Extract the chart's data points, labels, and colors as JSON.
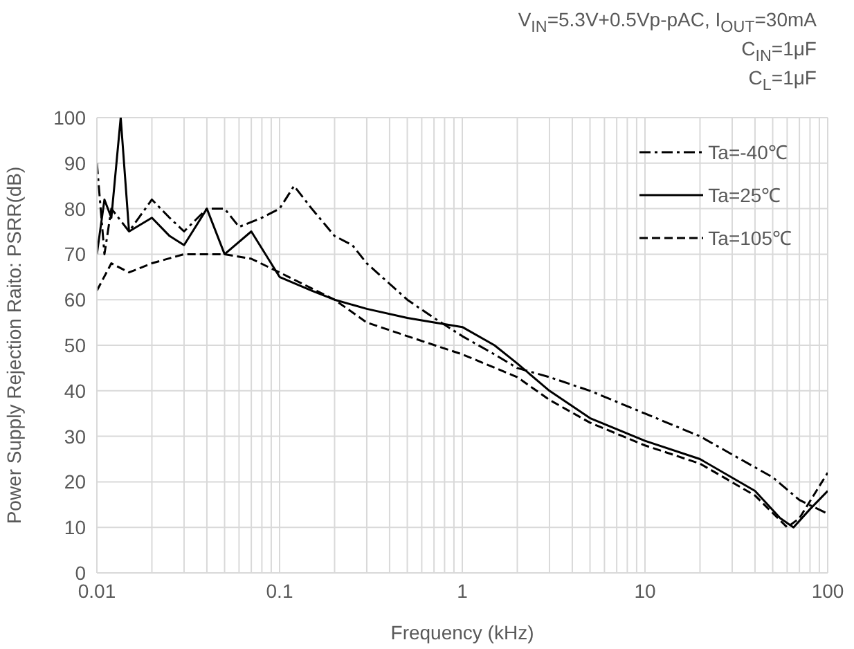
{
  "chart_data": {
    "type": "line",
    "title": "V$_{IN}$=5.3V+0.5Vp-pAC, I$_{OUT}$=30mA",
    "subtitle": "C$_{IN}$=1μF",
    "annotations": [
      "C$_{L}$=1μF"
    ],
    "xlabel": "Frequency (kHz)",
    "ylabel": "Power Supply Rejection Raito: PSRR(dB)",
    "log": "x",
    "xlim": [
      0.01,
      100
    ],
    "xticks": [
      0.01,
      0.1,
      1,
      10,
      100
    ],
    "ylim": [
      0,
      100
    ],
    "yticks": [
      0,
      10,
      20,
      30,
      40,
      50,
      60,
      70,
      80,
      90,
      100
    ],
    "grid": true,
    "legend": "top right",
    "marker": "none",
    "series": [
      {
        "name": "Ta=-40℃",
        "color": "#000000",
        "line_style": "dashdot",
        "x": [
          0.01,
          0.011,
          0.012,
          0.015,
          0.02,
          0.025,
          0.03,
          0.04,
          0.05,
          0.06,
          0.08,
          0.1,
          0.12,
          0.15,
          0.2,
          0.25,
          0.3,
          0.5,
          0.7,
          1,
          1.5,
          2,
          3,
          5,
          10,
          20,
          30,
          50,
          70,
          100
        ],
        "values": [
          90,
          70,
          80,
          75,
          82,
          78,
          75,
          80,
          80,
          76,
          78,
          80,
          85,
          80,
          74,
          72,
          68,
          60,
          56,
          52,
          48,
          45,
          43,
          40,
          35,
          30,
          26,
          21,
          16,
          13
        ]
      },
      {
        "name": "Ta=25℃",
        "color": "#000000",
        "line_style": "solid",
        "x": [
          0.01,
          0.011,
          0.012,
          0.0135,
          0.015,
          0.02,
          0.025,
          0.03,
          0.04,
          0.05,
          0.07,
          0.1,
          0.15,
          0.2,
          0.3,
          0.5,
          0.7,
          1,
          1.5,
          2,
          3,
          5,
          10,
          20,
          40,
          55,
          65,
          80,
          100
        ],
        "values": [
          70,
          82,
          78,
          100,
          75,
          78,
          74,
          72,
          80,
          70,
          75,
          65,
          62,
          60,
          58,
          56,
          55,
          54,
          50,
          46,
          40,
          34,
          29,
          25,
          18,
          12,
          10,
          14,
          18
        ]
      },
      {
        "name": "Ta=105℃",
        "color": "#000000",
        "line_style": "dashed",
        "x": [
          0.01,
          0.012,
          0.015,
          0.02,
          0.03,
          0.05,
          0.07,
          0.1,
          0.2,
          0.3,
          0.5,
          1,
          2,
          3,
          5,
          10,
          20,
          40,
          60,
          70,
          100
        ],
        "values": [
          62,
          68,
          66,
          68,
          70,
          70,
          69,
          66,
          60,
          55,
          52,
          48,
          43,
          38,
          33,
          28,
          24,
          17,
          10,
          12,
          22
        ]
      }
    ]
  }
}
